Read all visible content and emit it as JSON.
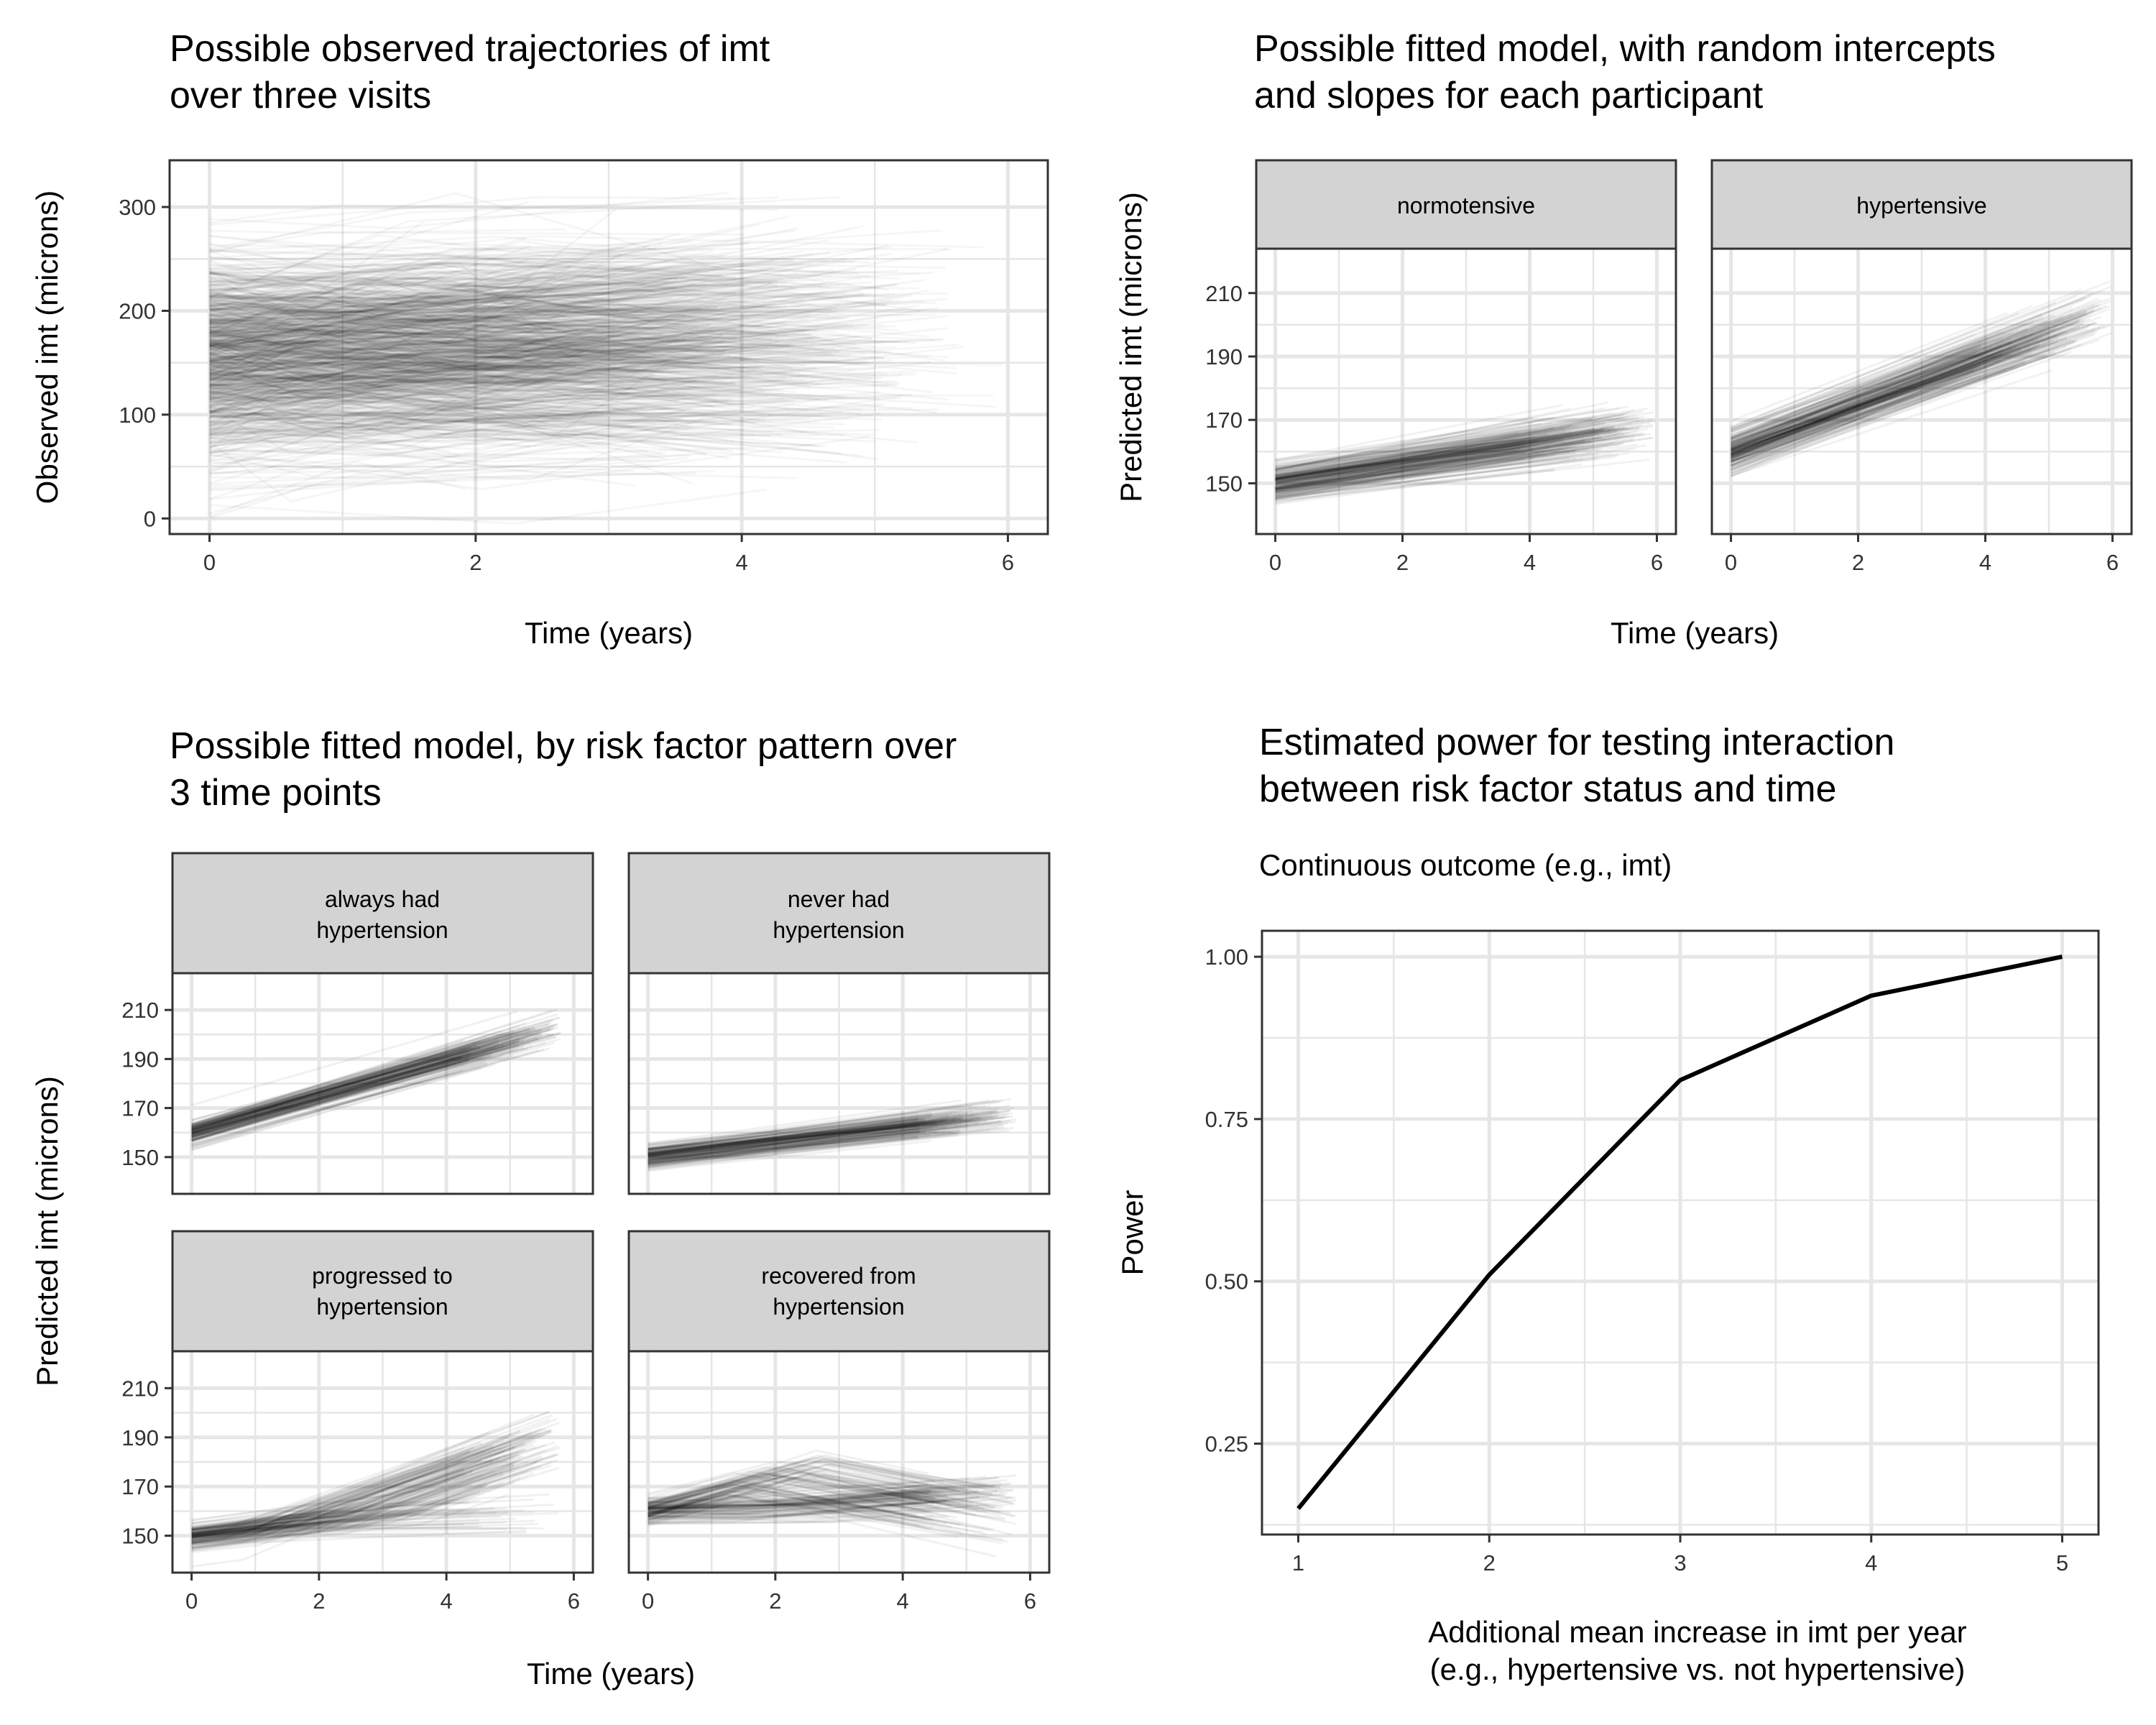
{
  "colors": {
    "grid": "#e6e6e6",
    "panel_border": "#333333",
    "strip_fill": "#d3d3d3",
    "trajectory_line": "#000000",
    "power_line": "#000000"
  },
  "chart_data": [
    {
      "id": "observed",
      "type": "line",
      "title": [
        "Possible observed trajectories of imt",
        "over three visits"
      ],
      "xlabel": "Time (years)",
      "ylabel": "Observed imt (microns)",
      "xlim": [
        -0.3,
        6.3
      ],
      "ylim": [
        -15,
        345
      ],
      "xticks": [
        0,
        2,
        4,
        6
      ],
      "yticks": [
        0,
        100,
        200,
        300
      ],
      "grid": true,
      "legend": "none",
      "series_description": "about 900 translucent participant trajectories over three visits",
      "y_band": {
        "mean_at_baseline": 155,
        "mean_at_year_4": 170,
        "spread_95pct": [
          40,
          280
        ]
      }
    },
    {
      "id": "fitted-by-group",
      "type": "line",
      "title": [
        "Possible fitted model, with random intercepts",
        "and slopes for each participant"
      ],
      "xlabel": "Time (years)",
      "ylabel": "Predicted imt (microns)",
      "xlim": [
        -0.3,
        6.3
      ],
      "ylim": [
        134,
        224
      ],
      "xticks": [
        0,
        2,
        4,
        6
      ],
      "yticks": [
        150,
        170,
        190,
        210
      ],
      "grid": true,
      "facets": [
        {
          "label": "normotensive",
          "mean_intercept": 150,
          "mean_slope": 3.0
        },
        {
          "label": "hypertensive",
          "mean_intercept": 160,
          "mean_slope": 7.5
        }
      ]
    },
    {
      "id": "fitted-by-pattern",
      "type": "line",
      "title": [
        "Possible fitted model, by risk factor pattern over",
        "3 time points"
      ],
      "xlabel": "Time (years)",
      "ylabel": "Predicted imt (microns)",
      "xlim": [
        -0.3,
        6.3
      ],
      "ylim": [
        135,
        225
      ],
      "xticks": [
        0,
        2,
        4,
        6
      ],
      "yticks": [
        150,
        170,
        190,
        210
      ],
      "grid": true,
      "facets": [
        {
          "label": [
            "always had",
            "hypertension"
          ],
          "pattern": "always",
          "mean_start": 160,
          "mean_at_5": 197
        },
        {
          "label": [
            "never had",
            "hypertension"
          ],
          "pattern": "never",
          "mean_start": 150,
          "mean_at_5": 165
        },
        {
          "label": [
            "progressed to",
            "hypertension"
          ],
          "pattern": "progressed",
          "mean_start": 150,
          "mean_at_5": 192
        },
        {
          "label": [
            "recovered from",
            "hypertension"
          ],
          "pattern": "recovered",
          "mean_start": 160,
          "mean_at_5": 165
        }
      ]
    },
    {
      "id": "power",
      "type": "line",
      "title": [
        "Estimated power for testing interaction",
        "between risk factor status and time"
      ],
      "subtitle": "Continuous outcome (e.g., imt)",
      "xlabel": [
        "Additional mean increase in imt per year",
        "(e.g., hypertensive vs. not hypertensive)"
      ],
      "ylabel": "Power",
      "xlim": [
        0.81,
        5.19
      ],
      "ylim": [
        0.11,
        1.04
      ],
      "xticks": [
        "1",
        "2",
        "3",
        "4",
        "5"
      ],
      "yticks": [
        "0.25",
        "0.50",
        "0.75",
        "1.00"
      ],
      "grid": true,
      "legend": "none",
      "x": [
        1,
        2,
        3,
        4,
        5
      ],
      "y": [
        0.15,
        0.51,
        0.81,
        0.94,
        1.0
      ]
    }
  ]
}
